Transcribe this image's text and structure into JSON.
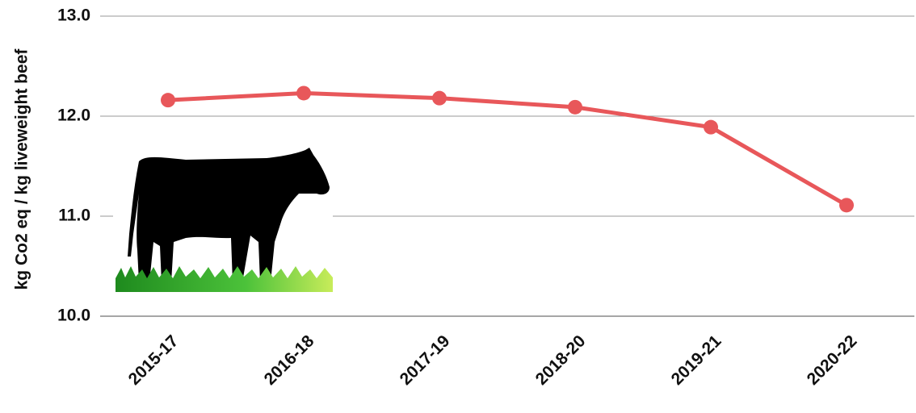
{
  "chart_data": {
    "type": "line",
    "y_label": "kg Co2 eq / kg liveweight beef",
    "categories": [
      "2015-17",
      "2016-18",
      "2017-19",
      "2018-20",
      "2019-21",
      "2020-22"
    ],
    "series": [
      {
        "name": "kg Co2 eq / kg liveweight beef",
        "color": "#e8575a",
        "values": [
          12.16,
          12.23,
          12.18,
          12.09,
          11.89,
          11.11
        ]
      }
    ],
    "ylim": [
      10,
      13
    ],
    "yticks": [
      {
        "value": 10,
        "label": "10.0"
      },
      {
        "value": 11,
        "label": "11.0"
      },
      {
        "value": 12,
        "label": "12.0"
      },
      {
        "value": 13,
        "label": "13.0"
      }
    ],
    "grid": true
  }
}
